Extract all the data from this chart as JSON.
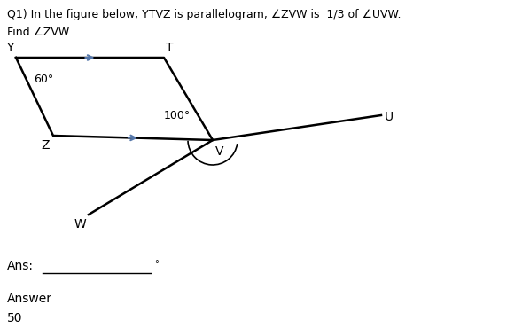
{
  "title_line1": "Q1) In the figure below, YTVZ is parallelogram, ∠ZVW is  1/3 of ∠UVW.",
  "title_line2": "Find ∠ZVW.",
  "angle_Y": "60°",
  "angle_V": "100°",
  "label_Y": "Y",
  "label_T": "T",
  "label_Z": "Z",
  "label_V": "V",
  "label_W": "W",
  "label_U": "U",
  "ans_label": "Ans:",
  "answer_label": "Answer",
  "answer_value": "50",
  "bg_color": "#ffffff",
  "text_color": "#000000",
  "line_color": "#000000",
  "arrow_color": "#5577aa",
  "fig_width": 5.72,
  "fig_height": 3.79,
  "dpi": 100
}
